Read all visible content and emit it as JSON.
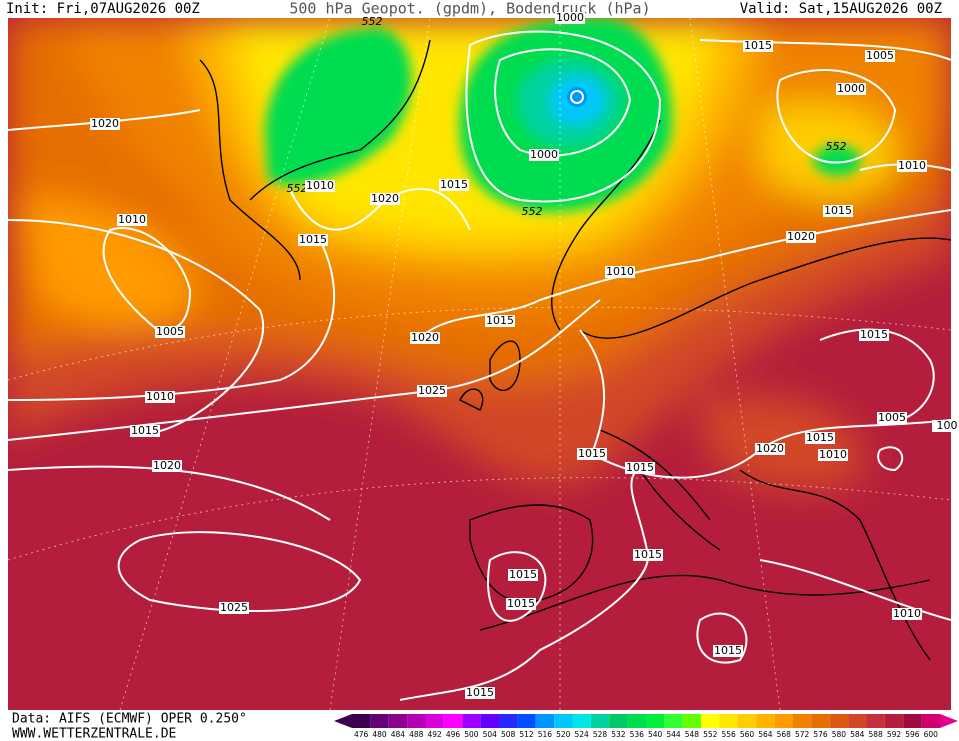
{
  "header": {
    "init": "Init: Fri,07AUG2026 00Z",
    "title": "500 hPa Geopot. (gpdm), Bodendruck (hPa)",
    "valid": "Valid: Sat,15AUG2026 00Z"
  },
  "isobar_labels": [
    "552",
    "1000",
    "1015",
    "1005",
    "1000",
    "1020",
    "552",
    "1010",
    "552",
    "1010",
    "1015",
    "1000",
    "1020",
    "552",
    "1015",
    "1010",
    "1015",
    "1020",
    "1010",
    "1005",
    "1015",
    "1020",
    "1015",
    "1025",
    "1010",
    "1015",
    "1005",
    "100",
    "1015",
    "1020",
    "1010",
    "1015",
    "1015",
    "1020",
    "1015",
    "1015",
    "1015",
    "1025",
    "1010",
    "1015",
    "1015"
  ],
  "scale": {
    "values": [
      476,
      480,
      484,
      488,
      492,
      496,
      500,
      504,
      508,
      512,
      516,
      520,
      524,
      528,
      532,
      536,
      540,
      544,
      548,
      552,
      556,
      560,
      564,
      568,
      572,
      576,
      580,
      584,
      588,
      592,
      596,
      600
    ],
    "colors": [
      "#3c0050",
      "#640078",
      "#8c008c",
      "#b400b4",
      "#dc00dc",
      "#ff00ff",
      "#a000ff",
      "#6400ff",
      "#2828ff",
      "#0050ff",
      "#0096ff",
      "#00c8ff",
      "#00e6e6",
      "#00d2a0",
      "#00c864",
      "#00dc50",
      "#00f03c",
      "#32ff32",
      "#64ff00",
      "#ffff00",
      "#ffe600",
      "#ffcd00",
      "#ffb400",
      "#ff9b00",
      "#f08200",
      "#e66e00",
      "#dc5a14",
      "#d24628",
      "#c3323c",
      "#b41e3c",
      "#a00a3c",
      "#d2006e"
    ]
  },
  "footer": {
    "source": "Data: AIFS (ECMWF) OPER 0.250°",
    "site": "WWW.WETTERZENTRALE.DE"
  }
}
